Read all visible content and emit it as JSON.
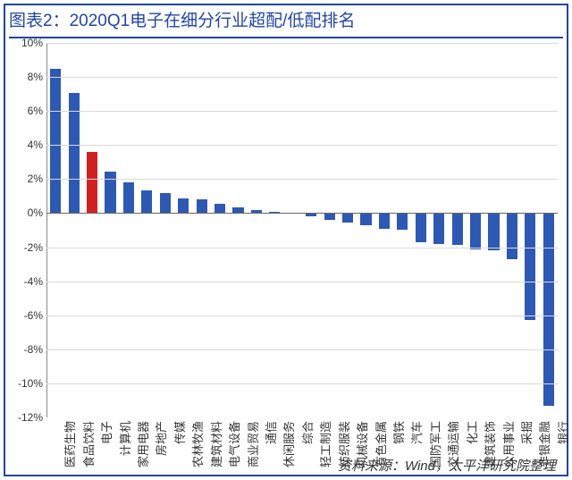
{
  "title": "图表2：2020Q1电子在细分行业超配/低配排名",
  "title_fontsize": 19,
  "source": "资料来源：Wind，太平洋研究院整理",
  "chart": {
    "type": "bar",
    "ylim": [
      -12,
      10
    ],
    "yticks": [
      -12,
      -10,
      -8,
      -6,
      -4,
      -2,
      0,
      2,
      4,
      6,
      8,
      10
    ],
    "ytick_suffix": "%",
    "grid_color": "#d9d9d9",
    "axis_color": "#888888",
    "zero_line_color": "#666666",
    "background_color": "#ffffff",
    "bar_width_ratio": 0.6,
    "label_fontsize": 13,
    "tick_fontsize": 12,
    "categories": [
      "医药生物",
      "食品饮料",
      "电子",
      "计算机",
      "家用电器",
      "房地产",
      "传媒",
      "农林牧渔",
      "建筑材料",
      "电气设备",
      "商业贸易",
      "通信",
      "休闲服务",
      "综合",
      "轻工制造",
      "纺织服装",
      "机械设备",
      "有色金属",
      "钢铁",
      "汽车",
      "国防军工",
      "交通运输",
      "化工",
      "建筑装饰",
      "公用事业",
      "采掘",
      "非银金融",
      "银行"
    ],
    "values": [
      8.5,
      7.05,
      3.6,
      2.45,
      1.8,
      1.35,
      1.2,
      0.85,
      0.8,
      0.55,
      0.35,
      0.2,
      0.1,
      0.05,
      -0.2,
      -0.4,
      -0.55,
      -0.7,
      -0.9,
      -1.0,
      -1.7,
      -1.8,
      -1.85,
      -2.15,
      -2.2,
      -2.7,
      -6.3,
      -11.3
    ],
    "default_bar_color": "#2e59b2",
    "highlight_index": 2,
    "highlight_color": "#d02222"
  }
}
